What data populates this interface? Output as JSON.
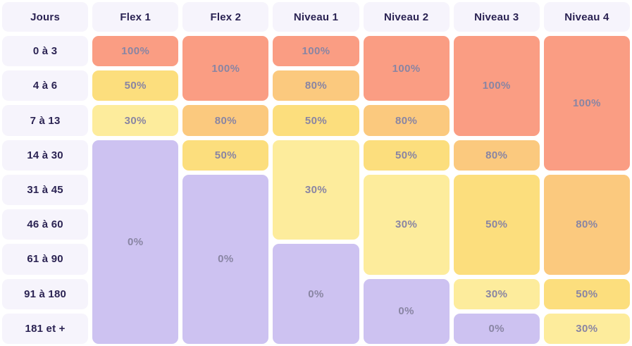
{
  "table": {
    "header_labels": [
      "Jours",
      "Flex 1",
      "Flex 2",
      "Niveau 1",
      "Niveau 2",
      "Niveau 3",
      "Niveau 4"
    ],
    "row_labels": [
      "0 à 3",
      "4 à 6",
      "7 à 13",
      "14 à 30",
      "31 à 45",
      "46 à 60",
      "61 à 90",
      "91 à 180",
      "181 et +"
    ],
    "columns": [
      {
        "name": "Flex 1",
        "cells": [
          {
            "label": "100%"
          },
          {
            "label": "50%"
          },
          {
            "label": "30%"
          },
          {
            "label": "0%"
          }
        ]
      },
      {
        "name": "Flex 2",
        "cells": [
          {
            "label": "100%"
          },
          {
            "label": "80%"
          },
          {
            "label": "50%"
          },
          {
            "label": "0%"
          }
        ]
      },
      {
        "name": "Niveau 1",
        "cells": [
          {
            "label": "100%"
          },
          {
            "label": "80%"
          },
          {
            "label": "50%"
          },
          {
            "label": "30%"
          },
          {
            "label": "0%"
          }
        ]
      },
      {
        "name": "Niveau 2",
        "cells": [
          {
            "label": "100%"
          },
          {
            "label": "80%"
          },
          {
            "label": "50%"
          },
          {
            "label": "30%"
          },
          {
            "label": "0%"
          }
        ]
      },
      {
        "name": "Niveau 3",
        "cells": [
          {
            "label": "100%"
          },
          {
            "label": "80%"
          },
          {
            "label": "50%"
          },
          {
            "label": "30%"
          },
          {
            "label": "0%"
          }
        ]
      },
      {
        "name": "Niveau 4",
        "cells": [
          {
            "label": "100%"
          },
          {
            "label": "80%"
          },
          {
            "label": "50%"
          },
          {
            "label": "30%"
          }
        ]
      }
    ]
  },
  "colors": {
    "levels": {
      "100": "#FA9D83",
      "80": "#FBC97E",
      "50": "#FCDE7D",
      "30": "#FDEC9C",
      "0": "#CDC2F1"
    },
    "header_bg": "#F6F4FC",
    "header_text": "#2B2353",
    "cell_text": "#8985A3"
  },
  "chart_data": {
    "type": "heatmap",
    "title": "",
    "unit": "%",
    "rows": [
      "0 à 3",
      "4 à 6",
      "7 à 13",
      "14 à 30",
      "31 à 45",
      "46 à 60",
      "61 à 90",
      "91 à 180",
      "181 et +"
    ],
    "row_axis_label": "Jours",
    "columns": [
      "Flex 1",
      "Flex 2",
      "Niveau 1",
      "Niveau 2",
      "Niveau 3",
      "Niveau 4"
    ],
    "values": [
      [
        100,
        100,
        100,
        100,
        100,
        100
      ],
      [
        50,
        100,
        80,
        100,
        100,
        100
      ],
      [
        30,
        80,
        50,
        80,
        100,
        100
      ],
      [
        0,
        50,
        30,
        50,
        80,
        100
      ],
      [
        0,
        0,
        30,
        30,
        50,
        80
      ],
      [
        0,
        0,
        30,
        30,
        50,
        80
      ],
      [
        0,
        0,
        0,
        30,
        50,
        80
      ],
      [
        0,
        0,
        0,
        0,
        30,
        50
      ],
      [
        0,
        0,
        0,
        0,
        0,
        30
      ]
    ],
    "color_scale": {
      "100": "#FA9D83",
      "80": "#FBC97E",
      "50": "#FCDE7D",
      "30": "#FDEC9C",
      "0": "#CDC2F1"
    },
    "legend_position": "none",
    "grid": false
  }
}
